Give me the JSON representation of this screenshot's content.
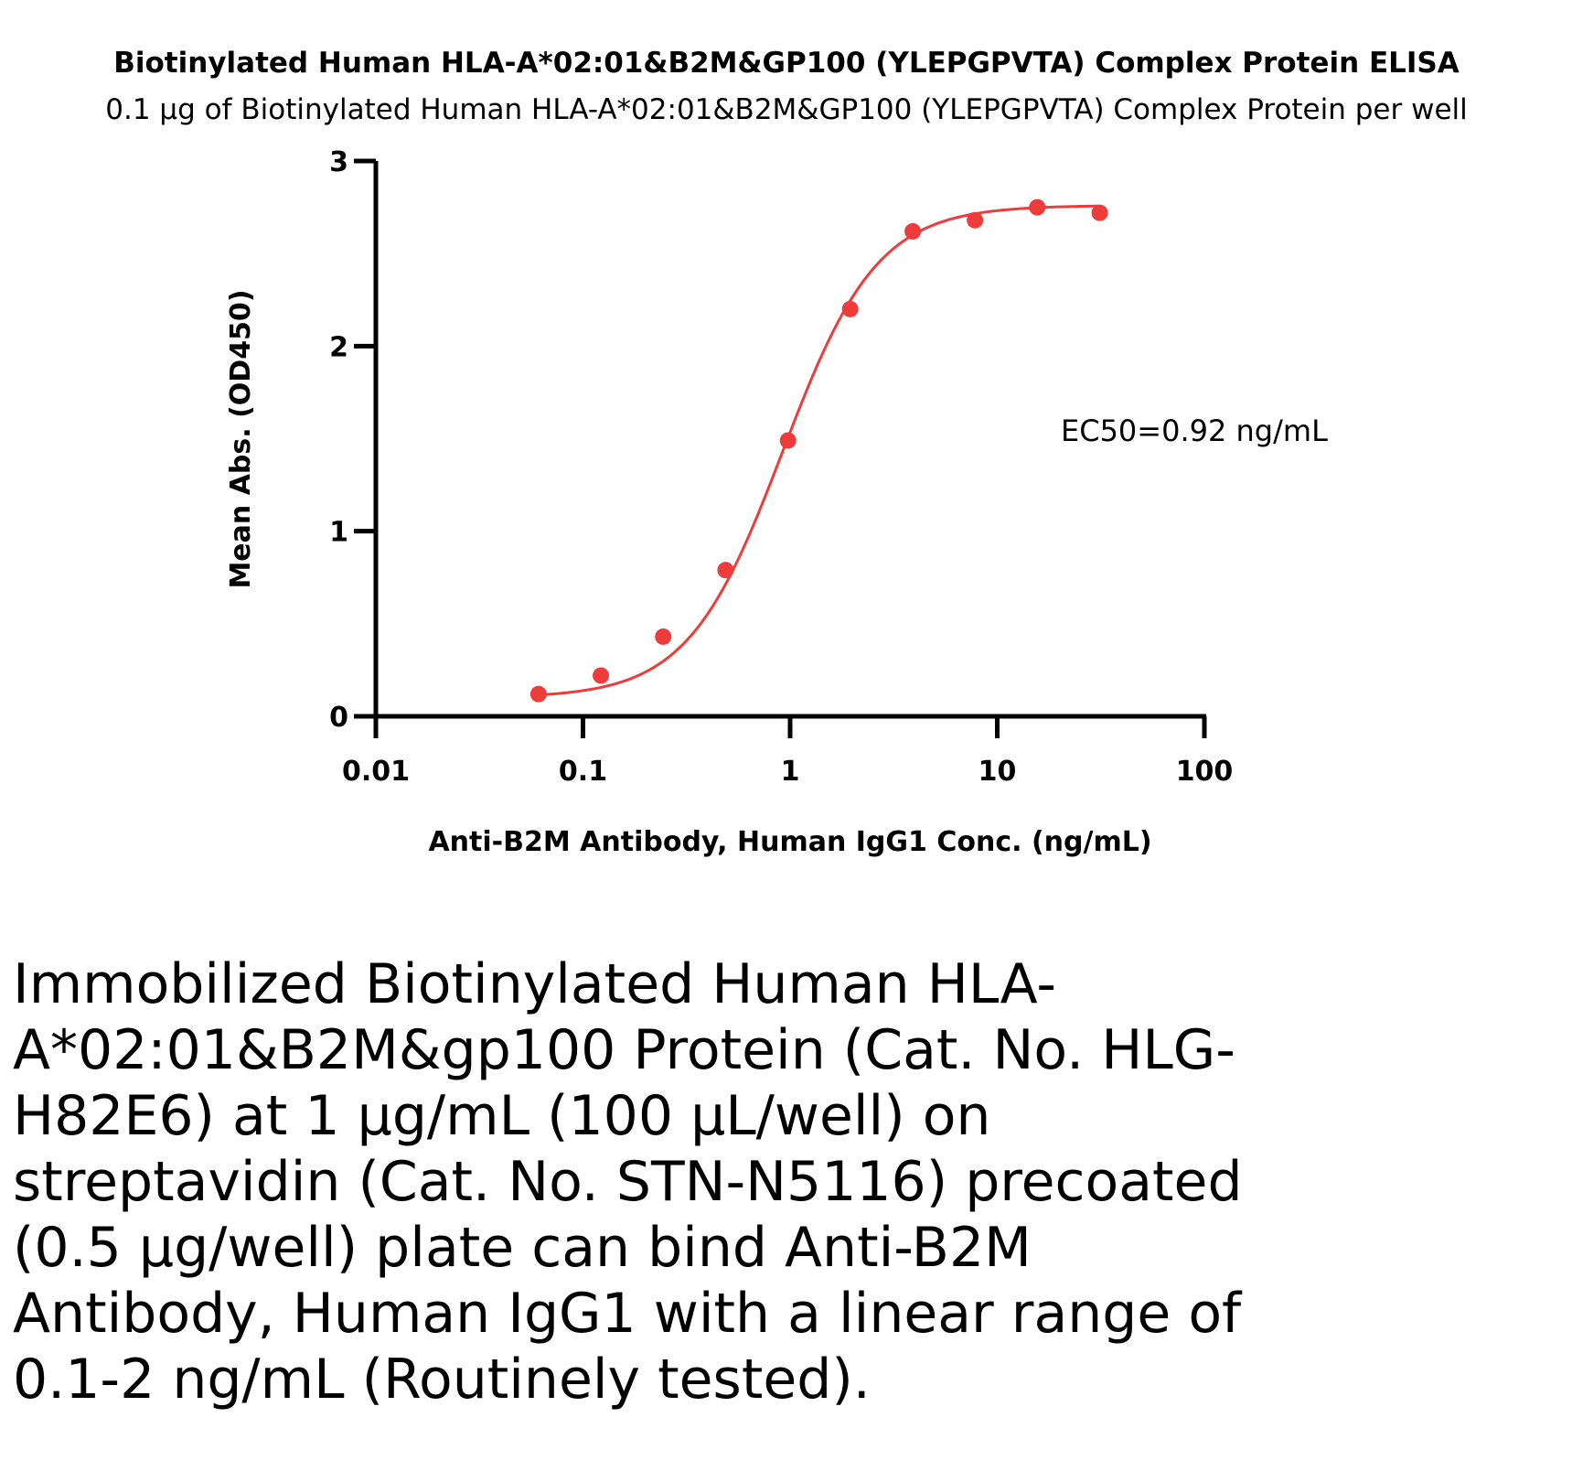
{
  "chart_data": {
    "type": "scatter",
    "title": "Biotinylated Human HLA-A*02:01&B2M&GP100 (YLEPGPVTA) Complex Protein ELISA",
    "subtitle": "0.1 µg of Biotinylated Human HLA-A*02:01&B2M&GP100 (YLEPGPVTA) Complex Protein per well",
    "xlabel": "Anti-B2M Antibody, Human IgG1 Conc. (ng/mL)",
    "ylabel": "Mean Abs. (OD450)",
    "x_scale": "log",
    "xlim": [
      0.01,
      100
    ],
    "ylim": [
      0,
      3
    ],
    "x_ticks": [
      0.01,
      0.1,
      1,
      10,
      100
    ],
    "x_tick_labels": [
      "0.01",
      "0.1",
      "1",
      "10",
      "100"
    ],
    "y_ticks": [
      0,
      1,
      2,
      3
    ],
    "y_tick_labels": [
      "0",
      "1",
      "2",
      "3"
    ],
    "grid": false,
    "color": "#ee3b3b",
    "series": [
      {
        "x": [
          0.061,
          0.122,
          0.244,
          0.488,
          0.977,
          1.95,
          3.91,
          7.81,
          15.6,
          31.25
        ],
        "y": [
          0.12,
          0.22,
          0.43,
          0.79,
          1.49,
          2.2,
          2.62,
          2.68,
          2.75,
          2.72
        ],
        "fit": {
          "model": "4PL",
          "bottom": 0.1,
          "top": 2.76,
          "ec50": 0.92,
          "hill": 1.9
        }
      }
    ],
    "annotations": [
      "EC50=0.92 ng/mL"
    ]
  },
  "description": "Immobilized Biotinylated Human HLA-A*02:01&B2M&gp100  Protein (Cat. No. HLG-H82E6) at  1 µg/mL (100 µL/well) on streptavidin (Cat. No. STN-N5116) precoated (0.5 µg/well) plate can bind Anti-B2M Antibody, Human IgG1 with a linear range of 0.1-2 ng/mL (Routinely tested)."
}
